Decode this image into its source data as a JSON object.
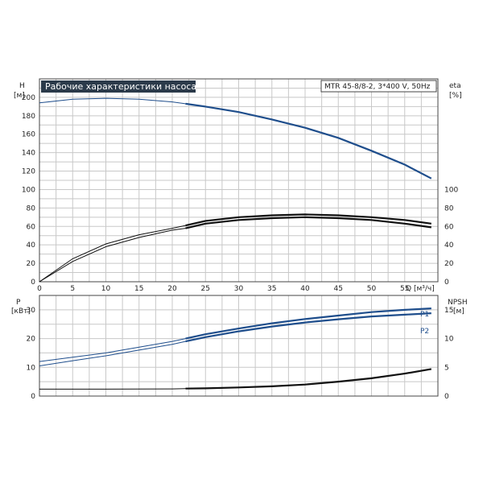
{
  "header": {
    "title": "Рабочие характеристики насоса",
    "model": "MTR 45-8/8-2, 3*400 V, 50Hz"
  },
  "colors": {
    "blue": "#1f4e8c",
    "black": "#111111",
    "grid": "#c8c8c8",
    "title_bg": "#2b3a4a"
  },
  "chart_data": [
    {
      "type": "line",
      "ylabel": "H",
      "yunit": "[м]",
      "ylim": [
        0,
        220
      ],
      "yticks": [
        0,
        20,
        40,
        60,
        80,
        100,
        120,
        140,
        160,
        180,
        200
      ],
      "right_label": "eta",
      "right_unit": "[%]",
      "right_ticks": [
        0,
        20,
        40,
        60,
        80,
        100
      ],
      "xlabel": "Q [м³/ч]",
      "xlim": [
        0,
        60
      ],
      "xticks": [
        0,
        5,
        10,
        15,
        20,
        25,
        30,
        35,
        40,
        45,
        50,
        55
      ],
      "grid": true,
      "series": [
        {
          "id": "head",
          "color": "#1f4e8c",
          "x": [
            0,
            5,
            10,
            15,
            20,
            22,
            25,
            30,
            35,
            40,
            45,
            50,
            55,
            59
          ],
          "y": [
            194,
            198,
            199,
            198,
            195,
            193,
            190,
            184,
            176,
            167,
            156,
            142,
            127,
            112
          ]
        },
        {
          "id": "eta-1",
          "color": "#111111",
          "x": [
            0,
            5,
            10,
            15,
            20,
            22,
            25,
            30,
            35,
            40,
            45,
            50,
            55,
            59
          ],
          "y": [
            0,
            25,
            41,
            51,
            58,
            61,
            66,
            70,
            72,
            73,
            72,
            70,
            67,
            63
          ]
        },
        {
          "id": "eta-2",
          "color": "#111111",
          "x": [
            0,
            5,
            10,
            15,
            20,
            22,
            25,
            30,
            35,
            40,
            45,
            50,
            55,
            59
          ],
          "y": [
            0,
            22,
            38,
            48,
            56,
            58,
            63,
            67,
            69,
            70,
            69,
            67,
            63,
            59
          ]
        }
      ]
    },
    {
      "type": "line",
      "ylabel": "P",
      "yunit": "[кВт]",
      "ylim": [
        0,
        35
      ],
      "yticks": [
        0,
        10,
        20,
        30
      ],
      "right_label": "NPSH",
      "right_unit": "[м]",
      "right_ticks": [
        0,
        5,
        10,
        15
      ],
      "right_lim": [
        0,
        17.5
      ],
      "grid": true,
      "series": [
        {
          "id": "p1",
          "name": "P1",
          "color": "#1f4e8c",
          "x": [
            0,
            5,
            10,
            15,
            20,
            22,
            25,
            30,
            35,
            40,
            45,
            50,
            55,
            59
          ],
          "y": [
            12,
            13.5,
            15,
            17,
            19,
            20,
            21.5,
            23.5,
            25.3,
            26.8,
            28,
            29.2,
            30,
            30.5
          ]
        },
        {
          "id": "p2",
          "name": "P2",
          "color": "#1f4e8c",
          "x": [
            0,
            5,
            10,
            15,
            20,
            22,
            25,
            30,
            35,
            40,
            45,
            50,
            55,
            59
          ],
          "y": [
            10.5,
            12.3,
            14,
            16,
            18,
            19,
            20.5,
            22.5,
            24.2,
            25.6,
            26.7,
            27.7,
            28.3,
            28.8
          ]
        },
        {
          "id": "npsh",
          "color": "#111111",
          "axis": "right",
          "x": [
            0,
            10,
            20,
            22,
            25,
            30,
            35,
            40,
            45,
            50,
            55,
            59
          ],
          "y": [
            1.2,
            1.2,
            1.25,
            1.3,
            1.35,
            1.5,
            1.7,
            2.0,
            2.5,
            3.1,
            3.9,
            4.7
          ]
        }
      ]
    }
  ]
}
